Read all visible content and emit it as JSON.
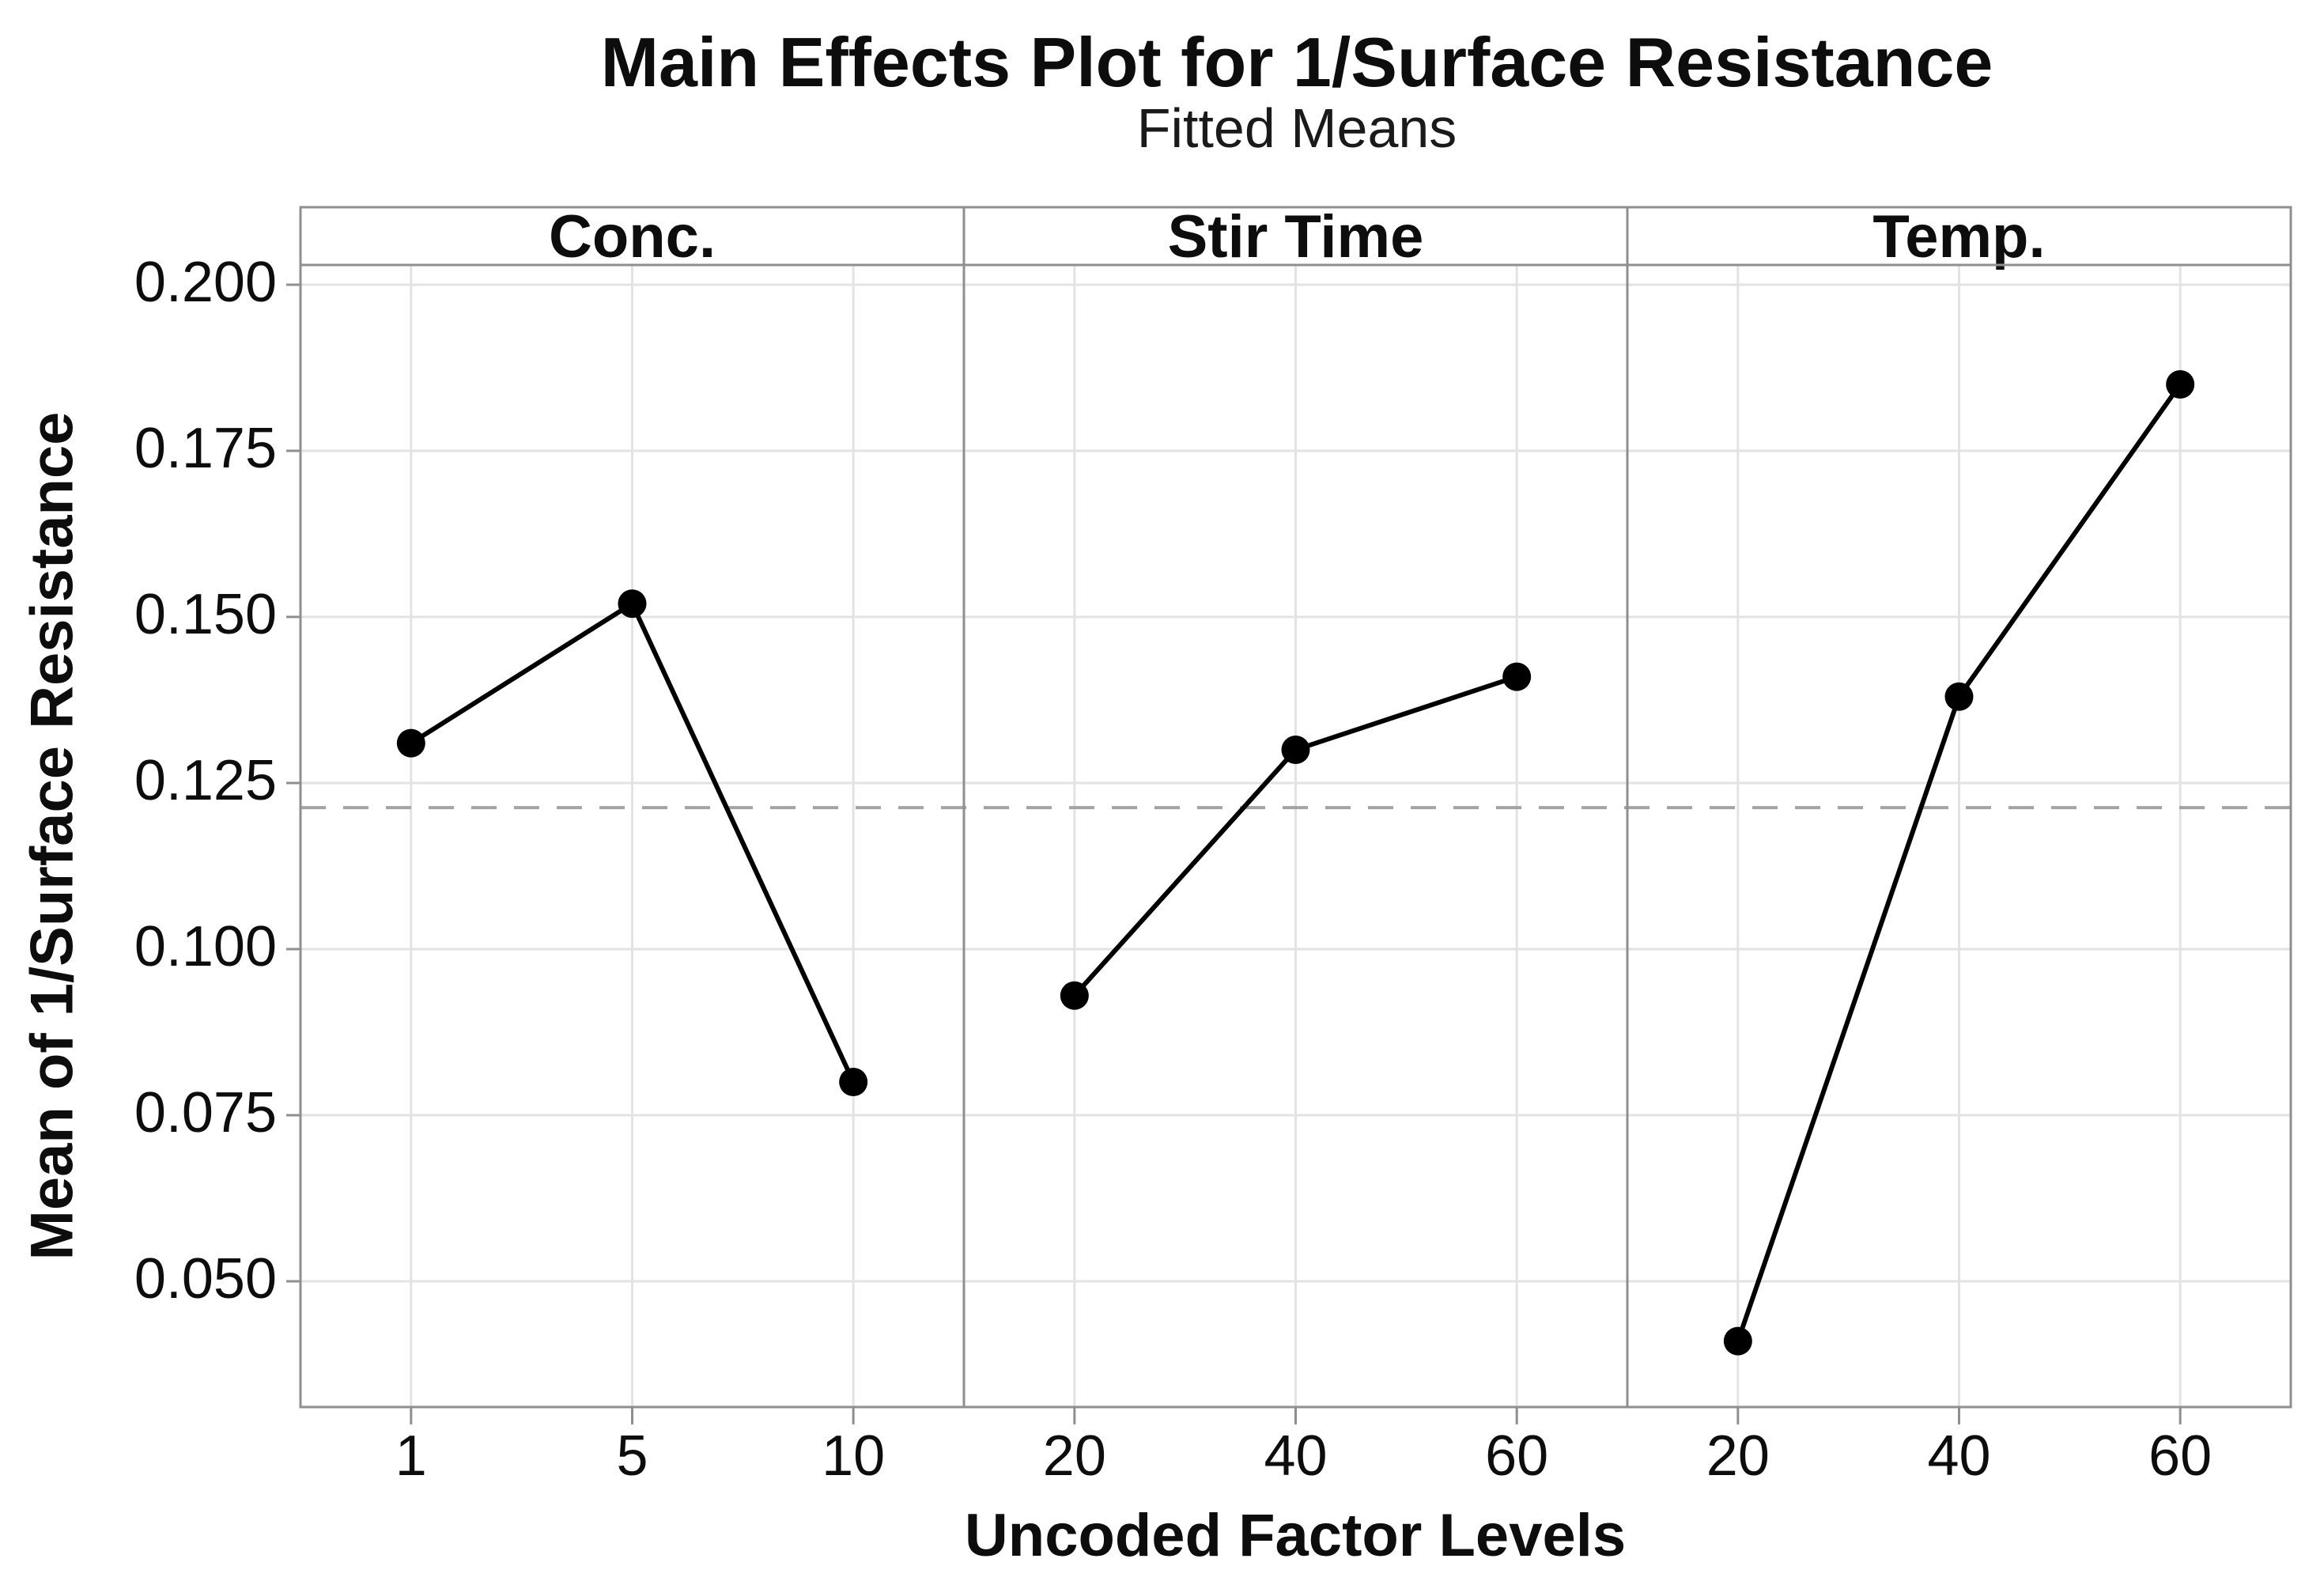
{
  "colors": {
    "background": "#ffffff",
    "text": "#0d0d0d",
    "axis_border": "#8f8f8f",
    "gridline": "#e3e3e3",
    "reference_line": "#a3a3a3",
    "series": "#000000"
  },
  "chart_data": {
    "type": "line",
    "title": "Main Effects Plot for 1/Surface Resistance",
    "subtitle": "Fitted Means",
    "xlabel": "Uncoded Factor Levels",
    "ylabel": "Mean of 1/Surface Resistance",
    "layout": "3 side-by-side panels sharing one y axis",
    "grid": true,
    "legend": false,
    "marker": "filled-circle",
    "y_ticks": [
      "0.200",
      "0.175",
      "0.150",
      "0.125",
      "0.100",
      "0.075",
      "0.050"
    ],
    "ylim": [
      0.031,
      0.203
    ],
    "reference_line": {
      "value": 0.1213,
      "style": "dashed",
      "meaning": "overall fitted mean"
    },
    "panels": [
      {
        "label": "Conc.",
        "x_ticks": [
          "1",
          "5",
          "10"
        ],
        "values": [
          0.131,
          0.152,
          0.08
        ]
      },
      {
        "label": "Stir Time",
        "x_ticks": [
          "20",
          "40",
          "60"
        ],
        "values": [
          0.093,
          0.13,
          0.141
        ]
      },
      {
        "label": "Temp.",
        "x_ticks": [
          "20",
          "40",
          "60"
        ],
        "values": [
          0.041,
          0.138,
          0.185
        ]
      }
    ]
  }
}
